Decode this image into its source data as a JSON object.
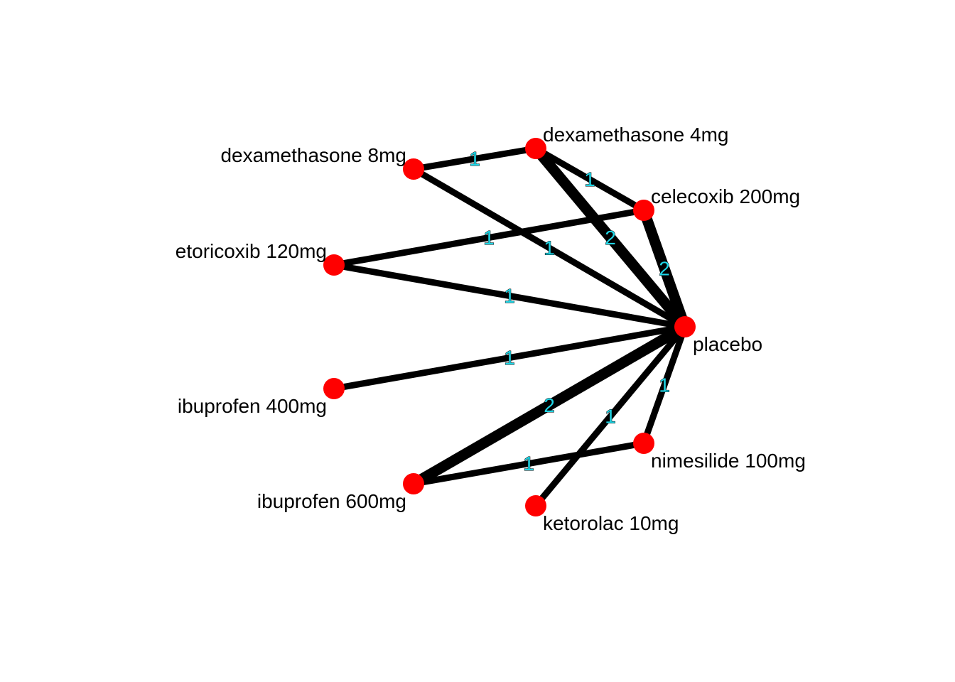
{
  "colors": {
    "node": "#ff0000",
    "edge": "#000000",
    "edge_label": "#1fd6e6",
    "text": "#000000"
  },
  "network": {
    "nodes": [
      {
        "id": "d8",
        "label": "dexamethasone 8mg"
      },
      {
        "id": "d4",
        "label": "dexamethasone 4mg"
      },
      {
        "id": "cel",
        "label": "celecoxib 200mg"
      },
      {
        "id": "eto",
        "label": "etoricoxib 120mg"
      },
      {
        "id": "pla",
        "label": "placebo"
      },
      {
        "id": "i4",
        "label": "ibuprofen 400mg"
      },
      {
        "id": "nim",
        "label": "nimesilide 100mg"
      },
      {
        "id": "i6",
        "label": "ibuprofen 600mg"
      },
      {
        "id": "ket",
        "label": "ketorolac 10mg"
      }
    ],
    "edges": [
      {
        "from": "d8",
        "to": "d4",
        "studies": 1
      },
      {
        "from": "d8",
        "to": "pla",
        "studies": 1
      },
      {
        "from": "d4",
        "to": "cel",
        "studies": 1
      },
      {
        "from": "d4",
        "to": "pla",
        "studies": 2
      },
      {
        "from": "cel",
        "to": "eto",
        "studies": 1
      },
      {
        "from": "cel",
        "to": "pla",
        "studies": 2
      },
      {
        "from": "eto",
        "to": "pla",
        "studies": 1
      },
      {
        "from": "i4",
        "to": "pla",
        "studies": 1
      },
      {
        "from": "i6",
        "to": "pla",
        "studies": 2
      },
      {
        "from": "i6",
        "to": "nim",
        "studies": 1
      },
      {
        "from": "nim",
        "to": "pla",
        "studies": 1
      },
      {
        "from": "ket",
        "to": "pla",
        "studies": 1
      }
    ]
  }
}
